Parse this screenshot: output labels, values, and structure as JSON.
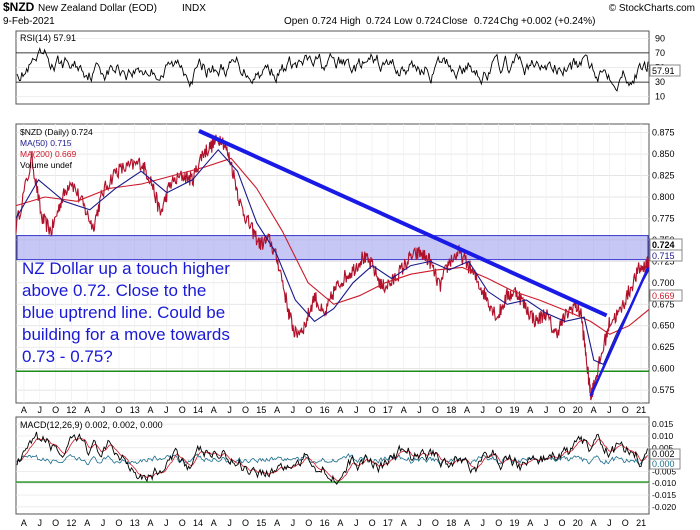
{
  "header": {
    "symbol": "$NZD",
    "name": "New Zealand Dollar (EOD)",
    "exchange": "INDX",
    "source": "© StockCharts.com",
    "date": "9-Feb-2021",
    "open_label": "Open",
    "open": "0.724",
    "high_label": "High",
    "high": "0.724",
    "low_label": "Low",
    "low": "0.724",
    "close_label": "Close",
    "close": "0.724",
    "chg_label": "Chg",
    "chg": "+0.002 (+0.24%)"
  },
  "annotation": {
    "lines": [
      "NZ Dollar up a touch higher",
      "above 0.72. Close to the",
      "blue uptrend line. Could be",
      "building for a move towards",
      "0.73 - 0.75?"
    ],
    "color": "#1a1ad6"
  },
  "colors": {
    "price": "#b0102a",
    "ma50": "#1a1a8c",
    "ma200": "#cc1a2a",
    "trend": "#1a1ae6",
    "band": "#9999ee",
    "green": "#1a8c1a",
    "macd": "#000000",
    "signal": "#cc1a2a",
    "hist": "#1a6e8c"
  },
  "x_axis_labels": [
    "A",
    "J",
    "O",
    "12",
    "A",
    "J",
    "O",
    "13",
    "A",
    "J",
    "O",
    "14",
    "A",
    "J",
    "O",
    "15",
    "A",
    "J",
    "O",
    "16",
    "A",
    "J",
    "O",
    "17",
    "A",
    "J",
    "O",
    "18",
    "A",
    "J",
    "O",
    "19",
    "A",
    "J",
    "O",
    "20",
    "A",
    "J",
    "O",
    "21"
  ],
  "chart_data": [
    {
      "type": "line",
      "panel": "rsi",
      "legend": "RSI(14) 57.91",
      "value": 57.91,
      "yticks": [
        90,
        70,
        50,
        30,
        10
      ],
      "ylim": [
        0,
        100
      ],
      "reference_lines": [
        70,
        30
      ],
      "value_label": "57.91"
    },
    {
      "type": "line",
      "panel": "price",
      "legend": [
        {
          "label": "$NZD (Daily) 0.724",
          "color": "#000000"
        },
        {
          "label": "MA(50) 0.715",
          "color": "#1a1a8c"
        },
        {
          "label": "MA(200) 0.669",
          "color": "#cc1a2a"
        },
        {
          "label": "Volume undef",
          "color": "#000000"
        }
      ],
      "yticks": [
        "0.875",
        "0.850",
        "0.825",
        "0.800",
        "0.775",
        "0.750",
        "0.725",
        "0.700",
        "0.675",
        "0.650",
        "0.625",
        "0.600",
        "0.575"
      ],
      "ylim": [
        0.56,
        0.885
      ],
      "x_range": [
        2011.25,
        2021.11
      ],
      "series": [
        {
          "name": "$NZD",
          "x": [
            2011.25,
            2011.5,
            2011.65,
            2011.8,
            2011.95,
            2012.1,
            2012.3,
            2012.45,
            2012.6,
            2012.8,
            2013.0,
            2013.2,
            2013.35,
            2013.5,
            2013.65,
            2013.85,
            2014.0,
            2014.15,
            2014.3,
            2014.45,
            2014.6,
            2014.75,
            2014.9,
            2015.05,
            2015.2,
            2015.35,
            2015.5,
            2015.6,
            2015.75,
            2015.9,
            2016.05,
            2016.2,
            2016.35,
            2016.5,
            2016.65,
            2016.8,
            2016.95,
            2017.1,
            2017.25,
            2017.4,
            2017.55,
            2017.7,
            2017.85,
            2018.0,
            2018.15,
            2018.3,
            2018.45,
            2018.6,
            2018.75,
            2018.9,
            2019.05,
            2019.2,
            2019.35,
            2019.5,
            2019.65,
            2019.8,
            2019.95,
            2020.05,
            2020.15,
            2020.2,
            2020.25,
            2020.35,
            2020.5,
            2020.65,
            2020.8,
            2020.95,
            2021.05,
            2021.11
          ],
          "y": [
            0.765,
            0.845,
            0.775,
            0.76,
            0.795,
            0.82,
            0.79,
            0.765,
            0.805,
            0.83,
            0.835,
            0.84,
            0.82,
            0.78,
            0.815,
            0.825,
            0.82,
            0.85,
            0.86,
            0.87,
            0.84,
            0.79,
            0.765,
            0.745,
            0.75,
            0.72,
            0.665,
            0.64,
            0.65,
            0.685,
            0.66,
            0.69,
            0.705,
            0.715,
            0.73,
            0.72,
            0.695,
            0.7,
            0.715,
            0.73,
            0.735,
            0.725,
            0.695,
            0.725,
            0.735,
            0.72,
            0.7,
            0.68,
            0.66,
            0.685,
            0.69,
            0.67,
            0.655,
            0.665,
            0.64,
            0.66,
            0.675,
            0.665,
            0.6,
            0.57,
            0.58,
            0.61,
            0.655,
            0.665,
            0.69,
            0.715,
            0.72,
            0.724
          ]
        },
        {
          "name": "MA(50)",
          "x": [
            2011.25,
            2011.6,
            2012.0,
            2012.4,
            2012.8,
            2013.2,
            2013.6,
            2014.0,
            2014.4,
            2014.7,
            2015.0,
            2015.3,
            2015.6,
            2015.9,
            2016.2,
            2016.5,
            2016.8,
            2017.1,
            2017.4,
            2017.7,
            2018.0,
            2018.3,
            2018.6,
            2018.9,
            2019.2,
            2019.5,
            2019.8,
            2020.1,
            2020.25,
            2020.4,
            2020.6,
            2020.8,
            2021.0,
            2021.11
          ],
          "y": [
            0.775,
            0.82,
            0.795,
            0.785,
            0.81,
            0.83,
            0.805,
            0.82,
            0.855,
            0.83,
            0.77,
            0.735,
            0.68,
            0.655,
            0.67,
            0.7,
            0.72,
            0.705,
            0.72,
            0.725,
            0.715,
            0.725,
            0.69,
            0.675,
            0.68,
            0.665,
            0.655,
            0.66,
            0.61,
            0.605,
            0.64,
            0.67,
            0.7,
            0.715
          ]
        },
        {
          "name": "MA(200)",
          "x": [
            2011.25,
            2011.7,
            2012.2,
            2012.7,
            2013.2,
            2013.7,
            2014.2,
            2014.6,
            2015.0,
            2015.4,
            2015.8,
            2016.2,
            2016.6,
            2017.0,
            2017.4,
            2017.8,
            2018.2,
            2018.6,
            2019.0,
            2019.4,
            2019.8,
            2020.2,
            2020.5,
            2020.8,
            2021.11
          ],
          "y": [
            0.79,
            0.8,
            0.795,
            0.81,
            0.815,
            0.825,
            0.835,
            0.845,
            0.81,
            0.76,
            0.7,
            0.675,
            0.685,
            0.7,
            0.71,
            0.715,
            0.718,
            0.705,
            0.69,
            0.68,
            0.668,
            0.655,
            0.64,
            0.65,
            0.669
          ]
        }
      ],
      "band": [
        0.727,
        0.755
      ],
      "green_line": 0.597,
      "downtrend_line": [
        [
          2014.1,
          0.877
        ],
        [
          2020.45,
          0.662
        ]
      ],
      "uptrend_line": [
        [
          2020.2,
          0.568
        ],
        [
          2021.1,
          0.718
        ]
      ],
      "value_labels": [
        {
          "text": "0.724",
          "bold": true
        },
        {
          "text": "0.715",
          "bold": false
        },
        {
          "text": "0.669",
          "bold": false
        }
      ]
    },
    {
      "type": "line",
      "panel": "macd",
      "legend": "MACD(12,26,9) 0.002, 0.002, 0.000",
      "yticks": [
        "0.015",
        "0.010",
        "0.005",
        "0.000",
        "-0.005",
        "-0.010",
        "-0.015",
        "-0.020"
      ],
      "ylim": [
        -0.023,
        0.018
      ],
      "green_line": -0.0095,
      "value_labels": [
        "0.002",
        "0.000"
      ]
    }
  ]
}
